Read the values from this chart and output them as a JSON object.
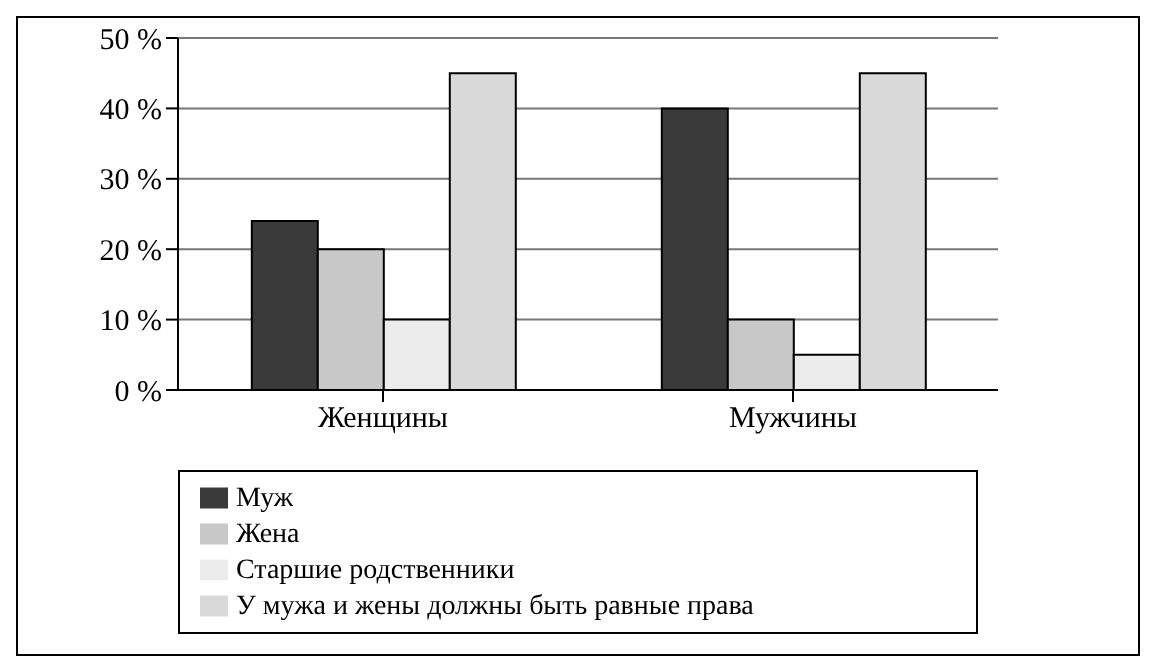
{
  "chart_data": {
    "type": "bar",
    "categories": [
      "Женщины",
      "Мужчины"
    ],
    "series": [
      {
        "name": "Муж",
        "color": "#3a3a3a",
        "values": [
          24,
          40
        ]
      },
      {
        "name": "Жена",
        "color": "#c8c8c8",
        "values": [
          20,
          10
        ]
      },
      {
        "name": "Старшие родственники",
        "color": "#ececec",
        "values": [
          10,
          5
        ]
      },
      {
        "name": "У мужа и жены должны быть равные права",
        "color": "#d9d9d9",
        "values": [
          45,
          45
        ]
      }
    ],
    "ylim": [
      0,
      50
    ],
    "yticks": [
      {
        "value": 0,
        "label": "0 %"
      },
      {
        "value": 10,
        "label": "10 %"
      },
      {
        "value": 20,
        "label": "20 %"
      },
      {
        "value": 30,
        "label": "30 %"
      },
      {
        "value": 40,
        "label": "40 %"
      },
      {
        "value": 50,
        "label": "50 %"
      }
    ],
    "grid": "y",
    "legend": "bottom"
  }
}
